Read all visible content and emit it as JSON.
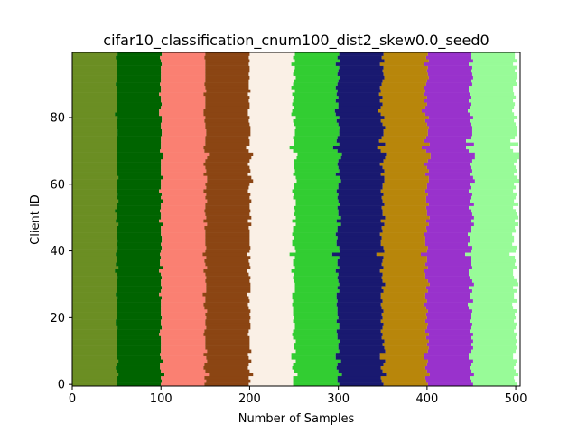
{
  "chart_data": {
    "type": "bar",
    "orientation": "horizontal-stacked",
    "title": "cifar10_classification_cnum100_dist2_skew0.0_seed0",
    "xlabel": "Number of Samples",
    "ylabel": "Client ID",
    "xlim": [
      0,
      505
    ],
    "ylim": [
      -0.5,
      99.5
    ],
    "xticks": [
      "0",
      "100",
      "200",
      "300",
      "400",
      "500"
    ],
    "yticks": [
      "0",
      "20",
      "40",
      "60",
      "80"
    ],
    "clients": 100,
    "samples_per_class_per_client": 50,
    "grid": false,
    "series": [
      {
        "color": "#6B8E23",
        "value": 50
      },
      {
        "color": "#006400",
        "value": 50
      },
      {
        "color": "#FA8072",
        "value": 50
      },
      {
        "color": "#8B4513",
        "value": 50
      },
      {
        "color": "#FAF0E6",
        "value": 50
      },
      {
        "color": "#32CD32",
        "value": 50
      },
      {
        "color": "#191970",
        "value": 50
      },
      {
        "color": "#B8860B",
        "value": 50
      },
      {
        "color": "#9932CC",
        "value": 50
      },
      {
        "color": "#98FB98",
        "value": 50
      }
    ]
  }
}
